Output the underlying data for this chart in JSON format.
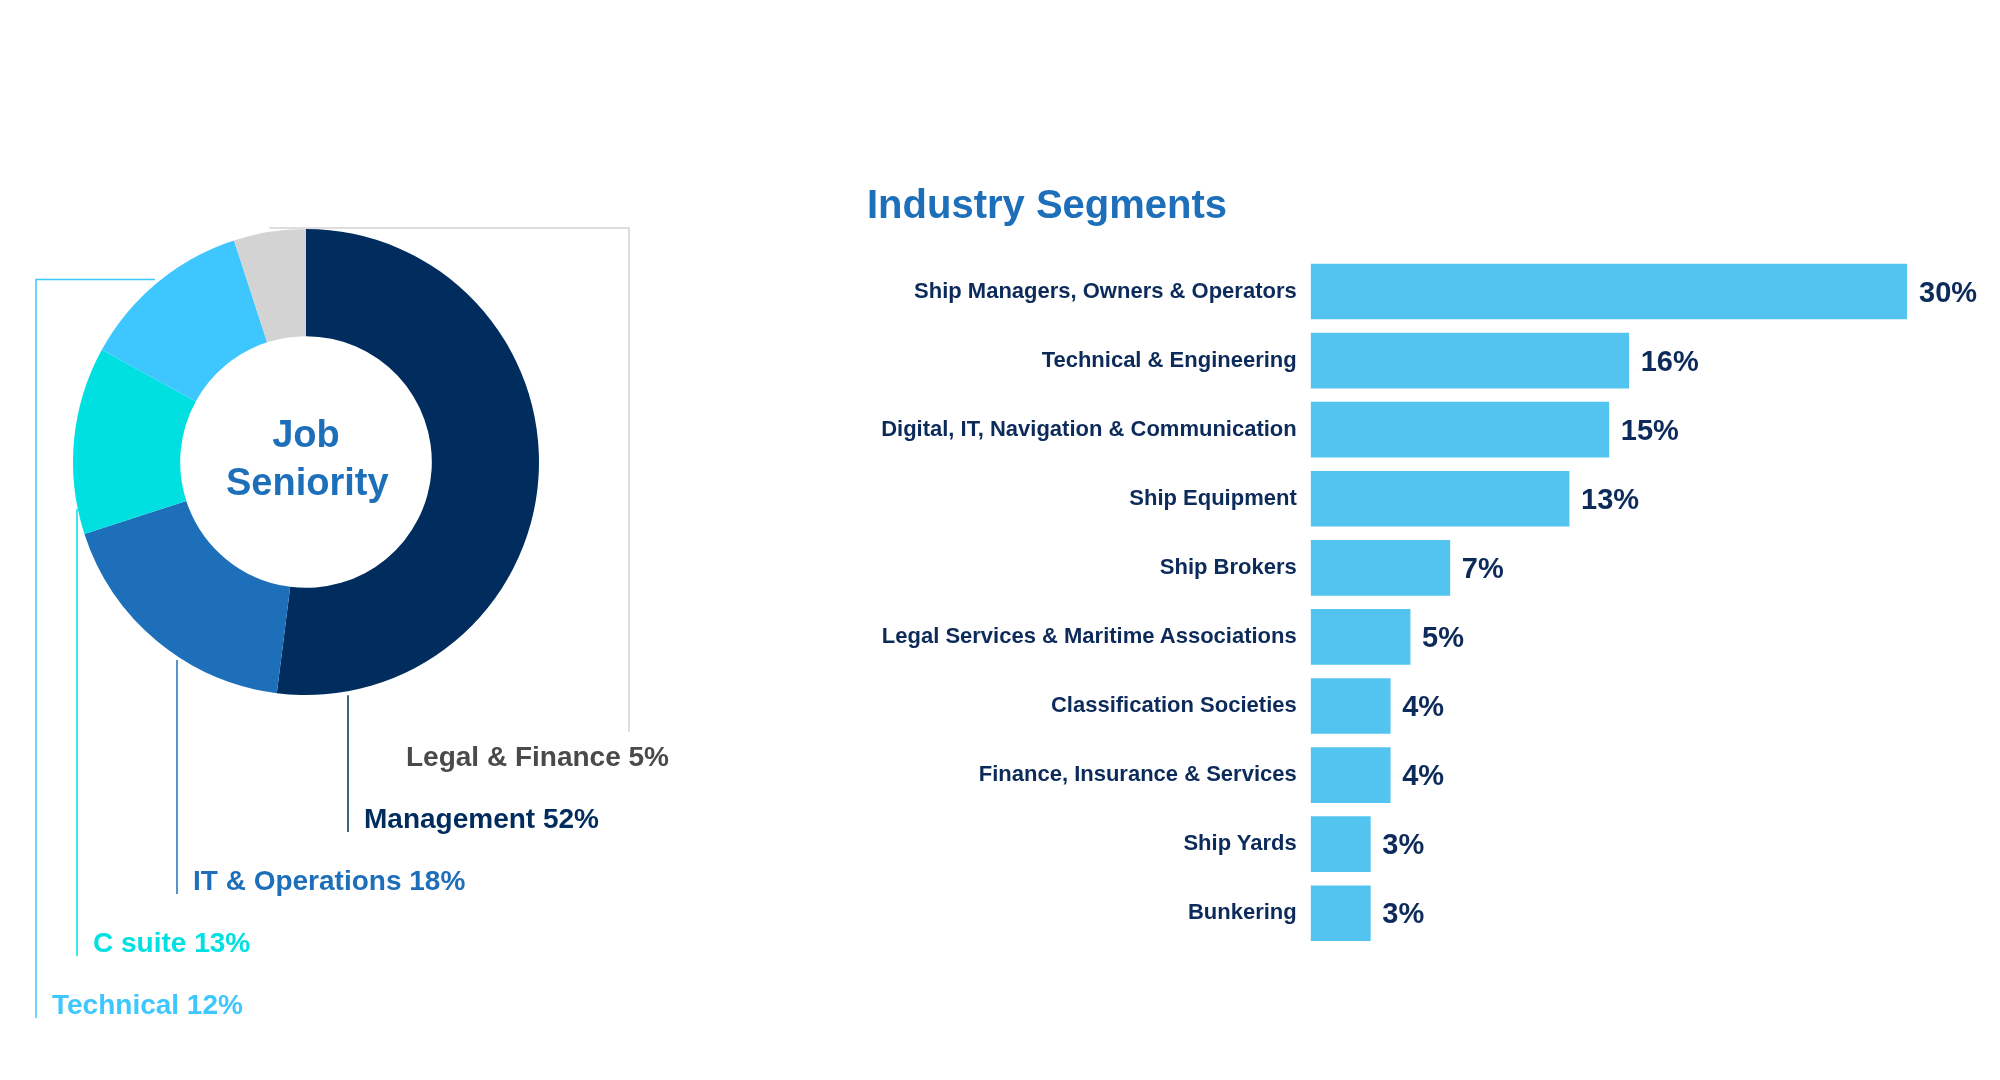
{
  "chart_data": [
    {
      "type": "donut",
      "title": "Job Seniority",
      "categories": [
        "Management",
        "IT & Operations",
        "C suite",
        "Technical",
        "Legal & Finance"
      ],
      "values": [
        52,
        18,
        13,
        12,
        5
      ],
      "value_labels": [
        "52%",
        "18%",
        "13%",
        "12%",
        "5%"
      ],
      "colors": [
        "#002d5e",
        "#1e6fba",
        "#00e0e0",
        "#3ec6ff",
        "#d3d3d3"
      ],
      "legend": false
    },
    {
      "type": "bar",
      "orientation": "horizontal",
      "title": "Industry Segments",
      "categories": [
        "Ship Managers, Owners & Operators",
        "Technical & Engineering",
        "Digital, IT, Navigation & Communication",
        "Ship Equipment",
        "Ship Brokers",
        "Legal Services & Maritime Associations",
        "Classification Societies",
        "Finance, Insurance & Services",
        "Ship Yards",
        "Bunkering"
      ],
      "values": [
        30,
        16,
        15,
        13,
        7,
        5,
        4,
        4,
        3,
        3
      ],
      "value_labels": [
        "30%",
        "16%",
        "15%",
        "13%",
        "7%",
        "5%",
        "4%",
        "4%",
        "3%",
        "3%"
      ],
      "color": "#53c3f0",
      "legend": false
    }
  ]
}
